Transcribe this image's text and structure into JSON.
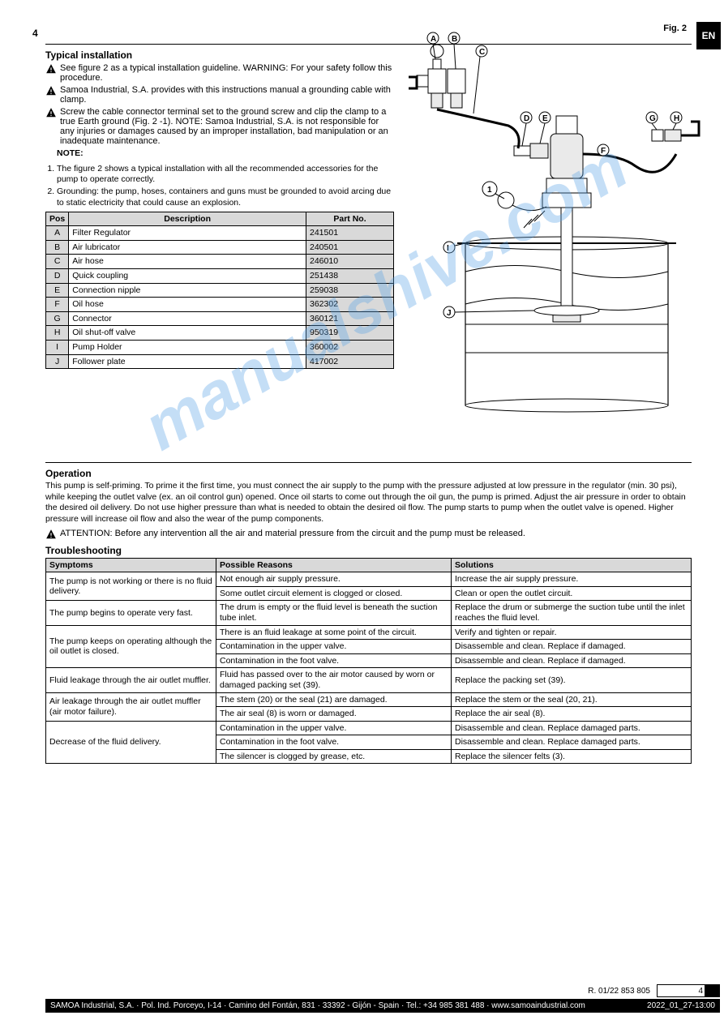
{
  "page_number": "4",
  "lang_tab": "EN",
  "figure_caption": "Fig. 2",
  "installation": {
    "title": "Typical installation",
    "paragraphs": [
      "See figure 2 as a typical installation guideline. WARNING: For your safety follow this procedure.",
      "Samoa Industrial, S.A. provides with this instructions manual a grounding cable with clamp.",
      "Screw the cable connector terminal set to the ground screw and clip the clamp to a true Earth ground (Fig. 2 -1). NOTE: Samoa Industrial, S.A. is not responsible for any injuries or damages caused by an improper installation, bad manipulation or an inadequate maintenance."
    ],
    "steps": [
      "The figure 2 shows a typical installation with all the recommended accessories for the pump to operate correctly.",
      "Grounding: the pump, hoses, containers and guns must be grounded to avoid arcing due to static electricity that could cause an explosion."
    ],
    "note_label": "NOTE:"
  },
  "parts_table": {
    "headers": [
      "Pos",
      "Description",
      "Part No."
    ],
    "rows": [
      [
        "A",
        "Filter Regulator",
        "241501"
      ],
      [
        "B",
        "Air lubricator",
        "240501"
      ],
      [
        "C",
        "Air hose",
        "246010"
      ],
      [
        "D",
        "Quick coupling",
        "251438"
      ],
      [
        "E",
        "Connection nipple",
        "259038"
      ],
      [
        "F",
        "Oil hose",
        "362302"
      ],
      [
        "G",
        "Connector",
        "360121"
      ],
      [
        "H",
        "Oil shut-off valve",
        "950319"
      ],
      [
        "I",
        "Pump Holder",
        "360002"
      ],
      [
        "J",
        "Follower plate",
        "417002"
      ]
    ]
  },
  "diagram": {
    "callouts": [
      "A",
      "B",
      "C",
      "D",
      "E",
      "F",
      "G",
      "H",
      "I",
      "J",
      "1"
    ],
    "colors": {
      "line": "#000000",
      "fill": "#ffffff",
      "shade": "#eaeaea"
    }
  },
  "operation": {
    "title": "Operation",
    "intro": "This pump is self-priming. To prime it the first time, you must connect the air supply to the pump with the pressure adjusted at low pressure in the regulator (min. 30 psi), while keeping the outlet valve (ex. an oil control gun) opened. Once oil starts to come out through the oil gun, the pump is primed. Adjust the air pressure in order to obtain the desired oil delivery. Do not use higher pressure than what is needed to obtain the desired oil flow. The pump starts to pump when the outlet valve is opened. Higher pressure will increase oil flow and also the wear of the pump components.",
    "attention": "ATTENTION: Before any intervention all the air and material pressure from the circuit and the pump must be released.",
    "attention_label": "ATTENTION:"
  },
  "troubleshooting": {
    "title": "Troubleshooting",
    "headers": [
      "Symptoms",
      "Possible Reasons",
      "Solutions"
    ],
    "rows": [
      [
        {
          "text": "The pump is not working or there is no fluid delivery.",
          "rowspan": 2
        },
        "Not enough air supply pressure.",
        "Increase the air supply pressure."
      ],
      [
        "Some outlet circuit element is clogged or closed.",
        "Clean or open the outlet circuit."
      ],
      [
        "The pump begins to operate very fast.",
        "The drum is empty or the fluid level is beneath the suction tube inlet.",
        "Replace the drum or submerge the suction tube until the inlet reaches the fluid level."
      ],
      [
        {
          "text": "The pump keeps on operating although the oil outlet is closed.",
          "rowspan": 3
        },
        "There is an fluid leakage at some point of the circuit.",
        "Verify and tighten or repair."
      ],
      [
        "Contamination in the upper valve.",
        "Disassemble and clean. Replace if damaged."
      ],
      [
        "Contamination in the foot valve.",
        "Disassemble and clean. Replace if damaged."
      ],
      [
        "Fluid leakage through the air outlet muffler.",
        "Fluid has passed over to the air motor caused by worn or damaged packing set (39).",
        "Replace the packing set (39)."
      ],
      [
        {
          "text": "Air leakage through the air outlet muffler (air motor failure).",
          "rowspan": 2
        },
        "The stem (20) or the seal (21) are damaged.",
        "Replace the stem or the seal (20, 21)."
      ],
      [
        "The air seal (8) is worn or damaged.",
        "Replace the air seal (8)."
      ],
      [
        {
          "text": "Decrease of the fluid delivery.",
          "rowspan": 3
        },
        "Contamination in the upper valve.",
        "Disassemble and clean. Replace damaged parts."
      ],
      [
        "Contamination in the foot valve.",
        "Disassemble and clean. Replace damaged parts."
      ],
      [
        "The silencer is clogged by grease, etc.",
        "Replace the silencer felts (3)."
      ]
    ]
  },
  "footer": {
    "left": "2022_01_27-13:00",
    "doc": "R. 01/22 853 805",
    "company": "SAMOA Industrial, S.A. · Pol. Ind. Porceyo, I-14 · Camino del Fontán, 831 · 33392 - Gijón - Spain · Tel.: +34 985 381 488 · www.samoaindustrial.com"
  },
  "watermark": "manualshive.com",
  "icons": {
    "warn_fill": "#000000"
  }
}
